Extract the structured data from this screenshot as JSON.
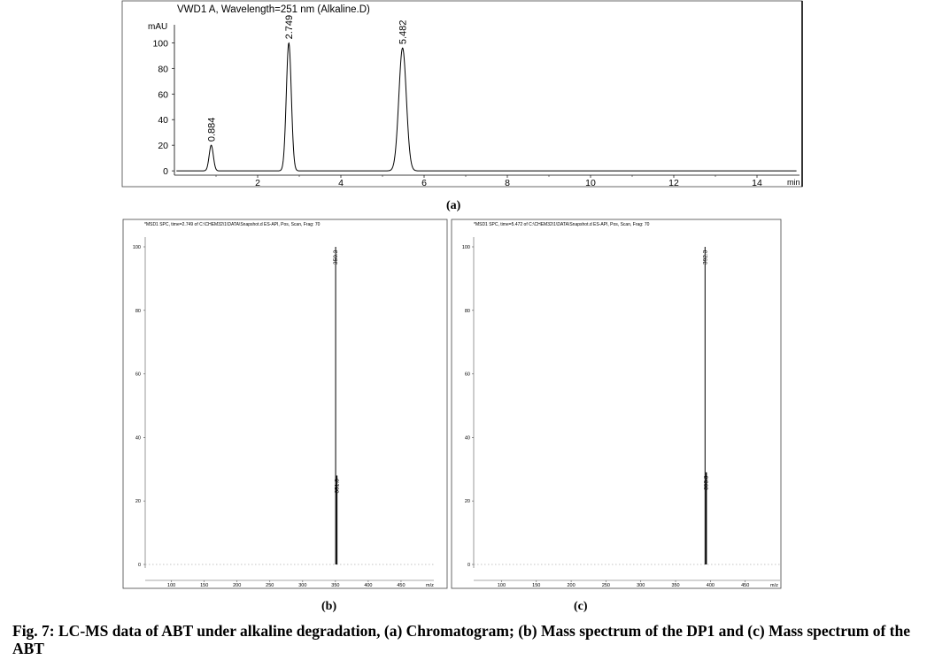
{
  "chart_data": [
    {
      "id": "a",
      "type": "line",
      "title": "VWD1 A, Wavelength=251 nm (Alkaline.D)",
      "ylabel": "mAU",
      "xunit": "min",
      "xlim": [
        0,
        15
      ],
      "ylim": [
        -2,
        112
      ],
      "xticks": [
        "2",
        "4",
        "6",
        "8",
        "10",
        "12",
        "14"
      ],
      "yticks": [
        "0",
        "20",
        "40",
        "60",
        "80",
        "100"
      ],
      "peaks": [
        {
          "label": "0.884",
          "x": 0.884,
          "y": 20,
          "width": 0.05
        },
        {
          "label": "2.749",
          "x": 2.749,
          "y": 100,
          "width": 0.06
        },
        {
          "label": "5.482",
          "x": 5.482,
          "y": 96,
          "width": 0.09
        }
      ],
      "panel_label": "(a)"
    },
    {
      "id": "b",
      "type": "bar",
      "title": "*MSD1 SPC, time=2.749 of C:\\CHEM32\\1\\DATA\\Snapshot.d   ES-API, Pos, Scan, Frag: 70",
      "xunit": "m/z",
      "xlim": [
        60,
        500
      ],
      "ylim": [
        -2,
        108
      ],
      "xticks": [
        "100",
        "150",
        "200",
        "250",
        "300",
        "350",
        "400",
        "450"
      ],
      "yticks": [
        "0",
        "20",
        "40",
        "60",
        "80",
        "100"
      ],
      "peaks": [
        {
          "label": "350.3",
          "x": 350.3,
          "y": 100
        },
        {
          "label": "351.3",
          "x": 351.3,
          "y": 28
        }
      ],
      "panel_label": "(b)"
    },
    {
      "id": "c",
      "type": "bar",
      "title": "*MSD1 SPC, time=5.472 of C:\\CHEM32\\1\\DATA\\Snapshot.d   ES-API, Pos, Scan, Frag: 70",
      "xunit": "m/z",
      "xlim": [
        60,
        500
      ],
      "ylim": [
        -2,
        108
      ],
      "xticks": [
        "100",
        "150",
        "200",
        "250",
        "300",
        "350",
        "400",
        "450"
      ],
      "yticks": [
        "0",
        "20",
        "40",
        "60",
        "80",
        "100"
      ],
      "peaks": [
        {
          "label": "392.3",
          "x": 392.3,
          "y": 100
        },
        {
          "label": "393.3",
          "x": 393.3,
          "y": 29
        }
      ],
      "panel_label": "(c)"
    }
  ],
  "caption": "Fig. 7: LC-MS data of ABT under alkaline degradation, (a) Chromatogram; (b) Mass spectrum of the DP1 and (c) Mass spectrum of the ABT"
}
